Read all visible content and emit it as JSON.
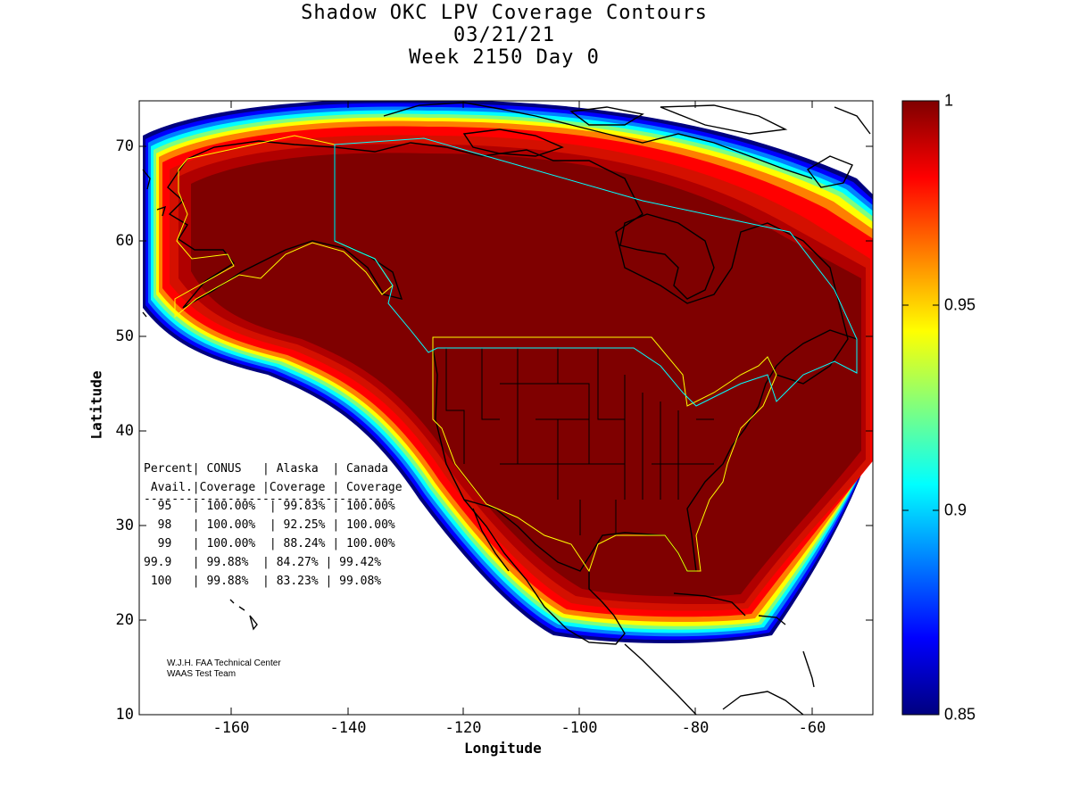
{
  "title": {
    "line1": "Shadow OKC LPV Coverage Contours",
    "line2": "03/21/21",
    "line3": "Week 2150 Day 0"
  },
  "axes": {
    "xlabel": "Longitude",
    "ylabel": "Latitude",
    "xlim": [
      -175,
      -50
    ],
    "ylim": [
      10,
      75
    ],
    "xticks": [
      "-160",
      "-140",
      "-120",
      "-100",
      "-80",
      "-60"
    ],
    "yticks": [
      "10",
      "20",
      "30",
      "40",
      "50",
      "60",
      "70"
    ]
  },
  "colorbar": {
    "range": [
      0.85,
      1
    ],
    "ticks": [
      "1",
      "0.95",
      "0.9",
      "0.85"
    ],
    "colormap": [
      "#00007f",
      "#0000ff",
      "#007fff",
      "#00ffff",
      "#7fff7f",
      "#ffff00",
      "#ff7f00",
      "#ff0000",
      "#7f0000"
    ]
  },
  "table": {
    "header1": "Percent| CONUS   | Alaska  | Canada",
    "header2": " Avail.|Coverage |Coverage | Coverage",
    "rule": "------------------------------------",
    "rows": [
      "  95   | 100.00%  | 99.83% | 100.00%",
      "  98   | 100.00%  | 92.25% | 100.00%",
      "  99   | 100.00%  | 88.24% | 100.00%",
      "99.9   | 99.88%  | 84.27% | 99.42%",
      " 100   | 99.88%  | 83.23% | 99.08%"
    ]
  },
  "credit": {
    "line1": "W.J.H. FAA Technical Center",
    "line2": "WAAS Test Team"
  },
  "colors": {
    "core": "#7f0000",
    "boundary_conus": "#ffff00",
    "boundary_canada": "#00ffff",
    "coast": "#000000"
  }
}
